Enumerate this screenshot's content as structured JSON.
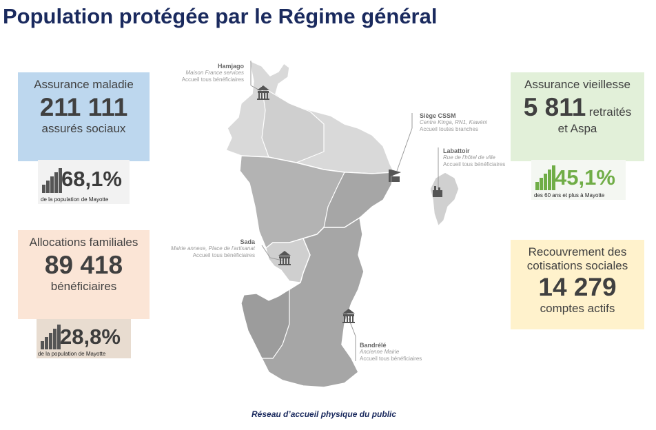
{
  "title": "Population protégée par le Régime général",
  "maladie": {
    "label": "Assurance maladie",
    "value": "211 111",
    "sub": "assurés sociaux",
    "pct": "68,1%",
    "pct_caption": "de la population de Mayotte",
    "color": "#bdd7ee"
  },
  "familiales": {
    "label": "Allocations familiales",
    "value": "89 418",
    "sub": "bénéficiaires",
    "pct": "28,8%",
    "pct_caption": "de la population de Mayotte",
    "color": "#fbe5d6"
  },
  "vieillesse": {
    "label": "Assurance vieillesse",
    "value": "5 811",
    "value_suffix": "retraités",
    "sub": "et Aspa",
    "pct": "45,1%",
    "pct_caption": "des 60 ans et plus à Mayotte",
    "color": "#e2f0d9",
    "pct_color": "#70ad47"
  },
  "recouvrement": {
    "label_line1": "Recouvrement des",
    "label_line2": "cotisations sociales",
    "value": "14 279",
    "sub": "comptes actifs",
    "color": "#fff2cc"
  },
  "offices": {
    "hamjago": {
      "name": "Hamjago",
      "line1": "Maison France services",
      "line2": "Accueil tous bénéficiaires"
    },
    "siege": {
      "name": "Siège CSSM",
      "line1": "Centre Kinga, RN1, Kawéni",
      "line2": "Accueil toutes branches"
    },
    "labattoir": {
      "name": "Labattoir",
      "line1": "Rue de l'hôtel de ville",
      "line2": "Accueil tous bénéficiaires"
    },
    "sada": {
      "name": "Sada",
      "line1": "Mairie annexe, Place de l'artisanat",
      "line2": "Accueil tous bénéficiaires"
    },
    "bandrele": {
      "name": "Bandrélé",
      "line1": "Ancienne Mairie",
      "line2": "Accueil tous bénéficiaires"
    }
  },
  "caption": "Réseau d’accueil physique du public"
}
